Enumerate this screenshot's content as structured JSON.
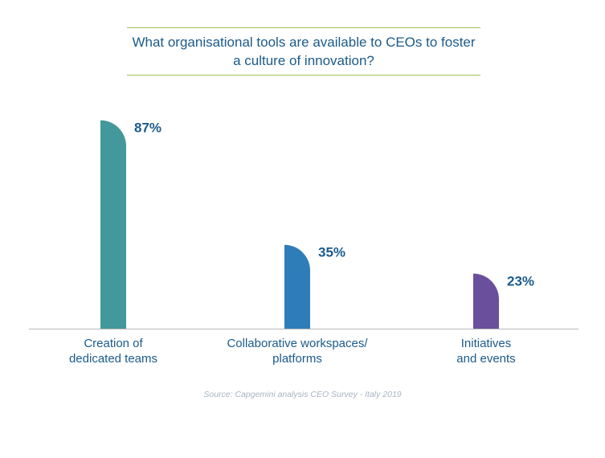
{
  "chart_data": {
    "type": "bar",
    "title": "What organisational tools are available to CEOs to foster a culture of innovation?",
    "categories": [
      [
        "Creation of",
        "dedicated teams"
      ],
      [
        "Collaborative workspaces/",
        "platforms"
      ],
      [
        "Initiatives",
        "and events"
      ]
    ],
    "values": [
      87,
      35,
      23
    ],
    "value_labels": [
      "87%",
      "35%",
      "23%"
    ],
    "bar_colors": [
      "#42989a",
      "#2f7db8",
      "#6a4f9c"
    ],
    "label_color": "#1b5b8a",
    "axis_color": "#b7b7b7",
    "ylim": [
      0,
      100
    ],
    "grid": false,
    "legend": "none"
  },
  "source": "Source: Capgemini analysis CEO Survey - Italy 2019"
}
